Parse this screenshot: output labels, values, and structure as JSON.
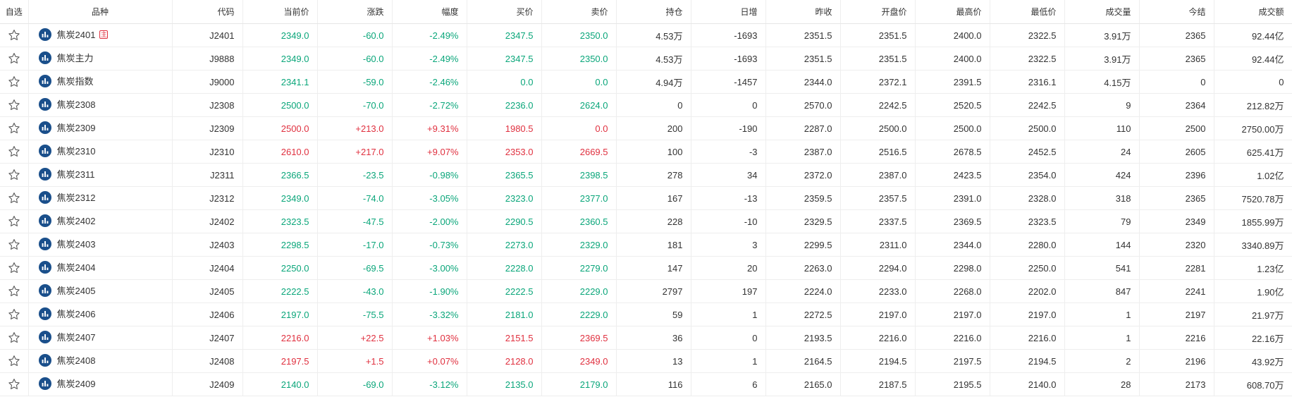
{
  "colors": {
    "up": "#e0303f",
    "down": "#0aa67a",
    "icon": "#1a4f8b"
  },
  "columns": [
    {
      "key": "fav",
      "label": "自选"
    },
    {
      "key": "name",
      "label": "品种"
    },
    {
      "key": "code",
      "label": "代码"
    },
    {
      "key": "price",
      "label": "当前价"
    },
    {
      "key": "change",
      "label": "涨跌"
    },
    {
      "key": "pct",
      "label": "幅度"
    },
    {
      "key": "bid",
      "label": "买价"
    },
    {
      "key": "ask",
      "label": "卖价"
    },
    {
      "key": "oi",
      "label": "持仓"
    },
    {
      "key": "oi_change",
      "label": "日增"
    },
    {
      "key": "prev_close",
      "label": "昨收"
    },
    {
      "key": "open",
      "label": "开盘价"
    },
    {
      "key": "high",
      "label": "最高价"
    },
    {
      "key": "low",
      "label": "最低价"
    },
    {
      "key": "volume",
      "label": "成交量"
    },
    {
      "key": "settle",
      "label": "今结"
    },
    {
      "key": "turnover",
      "label": "成交额"
    }
  ],
  "icons": {
    "favorite": "star-outline-icon",
    "chart": "chart-icon",
    "main_contract_badge": "主"
  },
  "rows": [
    {
      "name": "焦炭2401",
      "badge": "主",
      "code": "J2401",
      "price": "2349.0",
      "change": "-60.0",
      "pct": "-2.49%",
      "bid": "2347.5",
      "ask": "2350.0",
      "oi": "4.53万",
      "oi_change": "-1693",
      "prev_close": "2351.5",
      "open": "2351.5",
      "high": "2400.0",
      "low": "2322.5",
      "volume": "3.91万",
      "settle": "2365",
      "turnover": "92.44亿",
      "dir": "down"
    },
    {
      "name": "焦炭主力",
      "code": "J9888",
      "price": "2349.0",
      "change": "-60.0",
      "pct": "-2.49%",
      "bid": "2347.5",
      "ask": "2350.0",
      "oi": "4.53万",
      "oi_change": "-1693",
      "prev_close": "2351.5",
      "open": "2351.5",
      "high": "2400.0",
      "low": "2322.5",
      "volume": "3.91万",
      "settle": "2365",
      "turnover": "92.44亿",
      "dir": "down"
    },
    {
      "name": "焦炭指数",
      "code": "J9000",
      "price": "2341.1",
      "change": "-59.0",
      "pct": "-2.46%",
      "bid": "0.0",
      "ask": "0.0",
      "oi": "4.94万",
      "oi_change": "-1457",
      "prev_close": "2344.0",
      "open": "2372.1",
      "high": "2391.5",
      "low": "2316.1",
      "volume": "4.15万",
      "settle": "0",
      "turnover": "0",
      "dir": "down"
    },
    {
      "name": "焦炭2308",
      "code": "J2308",
      "price": "2500.0",
      "change": "-70.0",
      "pct": "-2.72%",
      "bid": "2236.0",
      "ask": "2624.0",
      "oi": "0",
      "oi_change": "0",
      "prev_close": "2570.0",
      "open": "2242.5",
      "high": "2520.5",
      "low": "2242.5",
      "volume": "9",
      "settle": "2364",
      "turnover": "212.82万",
      "dir": "down"
    },
    {
      "name": "焦炭2309",
      "code": "J2309",
      "price": "2500.0",
      "change": "+213.0",
      "pct": "+9.31%",
      "bid": "1980.5",
      "ask": "0.0",
      "oi": "200",
      "oi_change": "-190",
      "prev_close": "2287.0",
      "open": "2500.0",
      "high": "2500.0",
      "low": "2500.0",
      "volume": "110",
      "settle": "2500",
      "turnover": "2750.00万",
      "dir": "up",
      "ask_dir": "up"
    },
    {
      "name": "焦炭2310",
      "code": "J2310",
      "price": "2610.0",
      "change": "+217.0",
      "pct": "+9.07%",
      "bid": "2353.0",
      "ask": "2669.5",
      "oi": "100",
      "oi_change": "-3",
      "prev_close": "2387.0",
      "open": "2516.5",
      "high": "2678.5",
      "low": "2452.5",
      "volume": "24",
      "settle": "2605",
      "turnover": "625.41万",
      "dir": "up"
    },
    {
      "name": "焦炭2311",
      "code": "J2311",
      "price": "2366.5",
      "change": "-23.5",
      "pct": "-0.98%",
      "bid": "2365.5",
      "ask": "2398.5",
      "oi": "278",
      "oi_change": "34",
      "prev_close": "2372.0",
      "open": "2387.0",
      "high": "2423.5",
      "low": "2354.0",
      "volume": "424",
      "settle": "2396",
      "turnover": "1.02亿",
      "dir": "down"
    },
    {
      "name": "焦炭2312",
      "code": "J2312",
      "price": "2349.0",
      "change": "-74.0",
      "pct": "-3.05%",
      "bid": "2323.0",
      "ask": "2377.0",
      "oi": "167",
      "oi_change": "-13",
      "prev_close": "2359.5",
      "open": "2357.5",
      "high": "2391.0",
      "low": "2328.0",
      "volume": "318",
      "settle": "2365",
      "turnover": "7520.78万",
      "dir": "down"
    },
    {
      "name": "焦炭2402",
      "code": "J2402",
      "price": "2323.5",
      "change": "-47.5",
      "pct": "-2.00%",
      "bid": "2290.5",
      "ask": "2360.5",
      "oi": "228",
      "oi_change": "-10",
      "prev_close": "2329.5",
      "open": "2337.5",
      "high": "2369.5",
      "low": "2323.5",
      "volume": "79",
      "settle": "2349",
      "turnover": "1855.99万",
      "dir": "down"
    },
    {
      "name": "焦炭2403",
      "code": "J2403",
      "price": "2298.5",
      "change": "-17.0",
      "pct": "-0.73%",
      "bid": "2273.0",
      "ask": "2329.0",
      "oi": "181",
      "oi_change": "3",
      "prev_close": "2299.5",
      "open": "2311.0",
      "high": "2344.0",
      "low": "2280.0",
      "volume": "144",
      "settle": "2320",
      "turnover": "3340.89万",
      "dir": "down"
    },
    {
      "name": "焦炭2404",
      "code": "J2404",
      "price": "2250.0",
      "change": "-69.5",
      "pct": "-3.00%",
      "bid": "2228.0",
      "ask": "2279.0",
      "oi": "147",
      "oi_change": "20",
      "prev_close": "2263.0",
      "open": "2294.0",
      "high": "2298.0",
      "low": "2250.0",
      "volume": "541",
      "settle": "2281",
      "turnover": "1.23亿",
      "dir": "down"
    },
    {
      "name": "焦炭2405",
      "code": "J2405",
      "price": "2222.5",
      "change": "-43.0",
      "pct": "-1.90%",
      "bid": "2222.5",
      "ask": "2229.0",
      "oi": "2797",
      "oi_change": "197",
      "prev_close": "2224.0",
      "open": "2233.0",
      "high": "2268.0",
      "low": "2202.0",
      "volume": "847",
      "settle": "2241",
      "turnover": "1.90亿",
      "dir": "down"
    },
    {
      "name": "焦炭2406",
      "code": "J2406",
      "price": "2197.0",
      "change": "-75.5",
      "pct": "-3.32%",
      "bid": "2181.0",
      "ask": "2229.0",
      "oi": "59",
      "oi_change": "1",
      "prev_close": "2272.5",
      "open": "2197.0",
      "high": "2197.0",
      "low": "2197.0",
      "volume": "1",
      "settle": "2197",
      "turnover": "21.97万",
      "dir": "down"
    },
    {
      "name": "焦炭2407",
      "code": "J2407",
      "price": "2216.0",
      "change": "+22.5",
      "pct": "+1.03%",
      "bid": "2151.5",
      "ask": "2369.5",
      "oi": "36",
      "oi_change": "0",
      "prev_close": "2193.5",
      "open": "2216.0",
      "high": "2216.0",
      "low": "2216.0",
      "volume": "1",
      "settle": "2216",
      "turnover": "22.16万",
      "dir": "up"
    },
    {
      "name": "焦炭2408",
      "code": "J2408",
      "price": "2197.5",
      "change": "+1.5",
      "pct": "+0.07%",
      "bid": "2128.0",
      "ask": "2349.0",
      "oi": "13",
      "oi_change": "1",
      "prev_close": "2164.5",
      "open": "2194.5",
      "high": "2197.5",
      "low": "2194.5",
      "volume": "2",
      "settle": "2196",
      "turnover": "43.92万",
      "dir": "up"
    },
    {
      "name": "焦炭2409",
      "code": "J2409",
      "price": "2140.0",
      "change": "-69.0",
      "pct": "-3.12%",
      "bid": "2135.0",
      "ask": "2179.0",
      "oi": "116",
      "oi_change": "6",
      "prev_close": "2165.0",
      "open": "2187.5",
      "high": "2195.5",
      "low": "2140.0",
      "volume": "28",
      "settle": "2173",
      "turnover": "608.70万",
      "dir": "down"
    }
  ]
}
